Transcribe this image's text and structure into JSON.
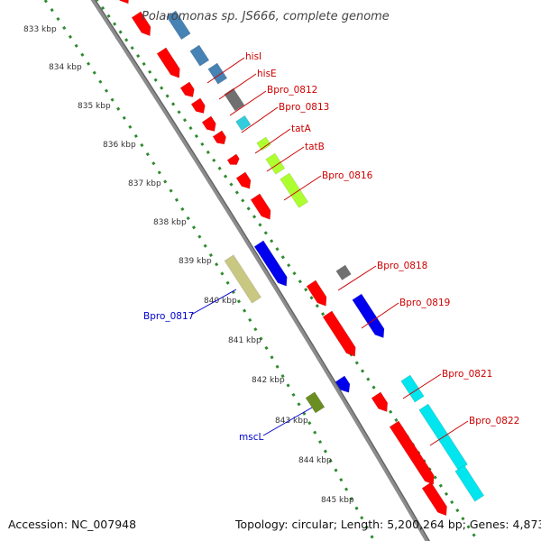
{
  "title": "Polaromonas sp. JS666, complete genome",
  "footer": {
    "accession": "Accession: NC_007948",
    "summary": "Topology: circular; Length: 5,200,264 bp; Genes: 4,873"
  },
  "colors": {
    "forward_cds": "#ff0000",
    "reverse_cds_label": "#0000cc",
    "forward_label": "#cc0000",
    "backbone": "#8c8c8c",
    "tick": "#2e8b2e",
    "steel_blue": "#4682b4",
    "blue": "#0000ee",
    "gray": "#707070",
    "cyan": "#00e5ee",
    "light_cyan": "#33ccdd",
    "yellow_green": "#adff2f",
    "khaki": "#c8c882",
    "olive": "#6b8e23"
  },
  "ticks": [
    {
      "label": "833 kbp"
    },
    {
      "label": "834 kbp"
    },
    {
      "label": "835 kbp"
    },
    {
      "label": "836 kbp"
    },
    {
      "label": "837 kbp"
    },
    {
      "label": "838 kbp"
    },
    {
      "label": "839 kbp"
    },
    {
      "label": "840 kbp"
    },
    {
      "label": "841 kbp"
    },
    {
      "label": "842 kbp"
    },
    {
      "label": "843 kbp"
    },
    {
      "label": "844 kbp"
    },
    {
      "label": "845 kbp"
    }
  ],
  "gene_labels": [
    {
      "text": "hisI",
      "strand": "forward"
    },
    {
      "text": "hisE",
      "strand": "forward"
    },
    {
      "text": "Bpro_0812",
      "strand": "forward"
    },
    {
      "text": "Bpro_0813",
      "strand": "forward"
    },
    {
      "text": "tatA",
      "strand": "forward"
    },
    {
      "text": "tatB",
      "strand": "forward"
    },
    {
      "text": "Bpro_0816",
      "strand": "forward"
    },
    {
      "text": "Bpro_0818",
      "strand": "forward"
    },
    {
      "text": "Bpro_0819",
      "strand": "forward"
    },
    {
      "text": "Bpro_0821",
      "strand": "forward"
    },
    {
      "text": "Bpro_0822",
      "strand": "forward"
    },
    {
      "text": "Bpro_0817",
      "strand": "reverse"
    },
    {
      "text": "mscL",
      "strand": "reverse"
    }
  ]
}
